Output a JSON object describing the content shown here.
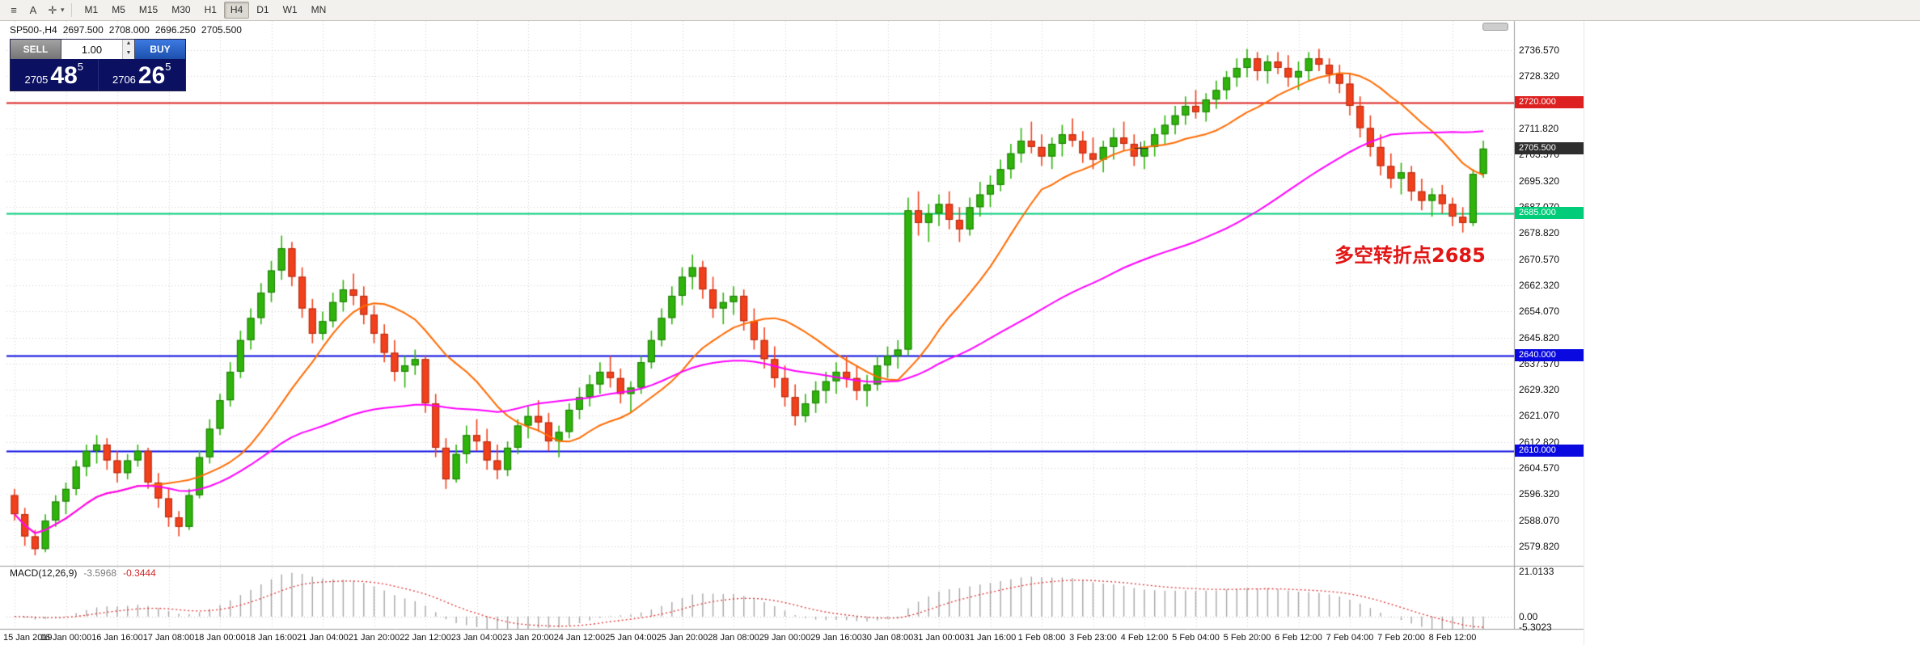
{
  "toolbar": {
    "icons": [
      {
        "id": "chart-window-icon",
        "glyph": "≡"
      },
      {
        "id": "text-tool-icon",
        "glyph": "A"
      },
      {
        "id": "crosshair-icon",
        "glyph": "✛"
      }
    ],
    "timeframes": [
      "M1",
      "M5",
      "M15",
      "M30",
      "H1",
      "H4",
      "D1",
      "W1",
      "MN"
    ],
    "active_timeframe": "H4"
  },
  "chart_header": {
    "symbol_tf": "SP500-,H4",
    "open": "2697.500",
    "high": "2708.000",
    "low": "2696.250",
    "close": "2705.500"
  },
  "one_click": {
    "sell_label": "SELL",
    "buy_label": "BUY",
    "volume": "1.00",
    "spin_up": "▲",
    "spin_down": "▼",
    "sell_price": {
      "head": "2705",
      "big": "48",
      "sup": "5"
    },
    "buy_price": {
      "head": "2706",
      "big": "26",
      "sup": "5"
    }
  },
  "price_tags": [
    {
      "label": "2720.000",
      "price": 2720.0,
      "color": "#dd2020"
    },
    {
      "label": "2705.500",
      "price": 2705.5,
      "color": "#2e2e2e"
    },
    {
      "label": "2685.000",
      "price": 2685.0,
      "color": "#00cc7a"
    },
    {
      "label": "2640.000",
      "price": 2640.0,
      "color": "#0a0ae0"
    },
    {
      "label": "2610.000",
      "price": 2610.0,
      "color": "#0a0ae0"
    }
  ],
  "chart_data": {
    "type": "candlestick",
    "symbol": "SP500-",
    "timeframe": "H4",
    "up_color": "#2fb40c",
    "up_border": "#1e7a06",
    "down_color": "#f2401c",
    "down_border": "#b02a10",
    "price_scale": {
      "top_price": 2745.8,
      "bottom_price": 2573.7
    },
    "price_axis_labels": [
      "2736.570",
      "2728.320",
      "2720.070",
      "2711.820",
      "2703.570",
      "2695.320",
      "2687.070",
      "2678.820",
      "2670.570",
      "2662.320",
      "2654.070",
      "2645.820",
      "2637.570",
      "2629.320",
      "2621.070",
      "2612.820",
      "2604.570",
      "2596.320",
      "2588.070",
      "2579.820"
    ],
    "hlines": [
      {
        "name": "resistance-2720",
        "price": 2720.0,
        "color": "#dd2020",
        "width": 2
      },
      {
        "name": "pivot-2685",
        "price": 2685.0,
        "color": "#00cc7a",
        "width": 2
      },
      {
        "name": "support-2640",
        "price": 2640.0,
        "color": "#0a0ae0",
        "width": 2
      },
      {
        "name": "support-2610",
        "price": 2610.0,
        "color": "#0a0ae0",
        "width": 2
      }
    ],
    "moving_averages": [
      {
        "name": "fast-ma",
        "color": "#ff6a00",
        "window": 14,
        "width": 2
      },
      {
        "name": "slow-ma",
        "color": "#ff00ff",
        "window": 48,
        "width": 2
      }
    ],
    "annotation": {
      "text": "多空转折点2685",
      "color": "#e21515"
    },
    "time_labels": [
      "15 Jan 2019",
      "16 Jan 00:00",
      "16 Jan 16:00",
      "17 Jan 08:00",
      "18 Jan 00:00",
      "18 Jan 16:00",
      "21 Jan 04:00",
      "21 Jan 20:00",
      "22 Jan 12:00",
      "23 Jan 04:00",
      "23 Jan 20:00",
      "24 Jan 12:00",
      "25 Jan 04:00",
      "25 Jan 20:00",
      "28 Jan 08:00",
      "29 Jan 00:00",
      "29 Jan 16:00",
      "30 Jan 08:00",
      "31 Jan 00:00",
      "31 Jan 16:00",
      "1 Feb 08:00",
      "3 Feb 23:00",
      "4 Feb 12:00",
      "5 Feb 04:00",
      "5 Feb 20:00",
      "6 Feb 12:00",
      "7 Feb 04:00",
      "7 Feb 20:00",
      "8 Feb 12:00"
    ],
    "label_every_n_bars": 5,
    "candles": [
      [
        2596,
        2598,
        2588,
        2590
      ],
      [
        2590,
        2592,
        2580,
        2583
      ],
      [
        2583,
        2585,
        2577,
        2579
      ],
      [
        2579,
        2590,
        2578,
        2588
      ],
      [
        2588,
        2596,
        2586,
        2594
      ],
      [
        2594,
        2600,
        2590,
        2598
      ],
      [
        2598,
        2607,
        2596,
        2605
      ],
      [
        2605,
        2612,
        2602,
        2610
      ],
      [
        2610,
        2615,
        2606,
        2612
      ],
      [
        2612,
        2614,
        2604,
        2607
      ],
      [
        2607,
        2610,
        2600,
        2603
      ],
      [
        2603,
        2609,
        2601,
        2607
      ],
      [
        2607,
        2612,
        2605,
        2610
      ],
      [
        2610,
        2611,
        2598,
        2600
      ],
      [
        2600,
        2603,
        2592,
        2595
      ],
      [
        2595,
        2598,
        2586,
        2589
      ],
      [
        2589,
        2591,
        2583,
        2586
      ],
      [
        2586,
        2598,
        2585,
        2596
      ],
      [
        2596,
        2610,
        2595,
        2608
      ],
      [
        2608,
        2620,
        2606,
        2617
      ],
      [
        2617,
        2628,
        2615,
        2626
      ],
      [
        2626,
        2638,
        2624,
        2635
      ],
      [
        2635,
        2648,
        2633,
        2645
      ],
      [
        2645,
        2655,
        2642,
        2652
      ],
      [
        2652,
        2663,
        2650,
        2660
      ],
      [
        2660,
        2670,
        2657,
        2667
      ],
      [
        2667,
        2678,
        2664,
        2674
      ],
      [
        2674,
        2676,
        2662,
        2665
      ],
      [
        2665,
        2668,
        2652,
        2655
      ],
      [
        2655,
        2658,
        2644,
        2647
      ],
      [
        2647,
        2654,
        2645,
        2651
      ],
      [
        2651,
        2660,
        2649,
        2657
      ],
      [
        2657,
        2664,
        2654,
        2661
      ],
      [
        2661,
        2666,
        2656,
        2659
      ],
      [
        2659,
        2662,
        2650,
        2653
      ],
      [
        2653,
        2656,
        2644,
        2647
      ],
      [
        2647,
        2650,
        2638,
        2641
      ],
      [
        2641,
        2645,
        2632,
        2635
      ],
      [
        2635,
        2640,
        2630,
        2637
      ],
      [
        2637,
        2642,
        2634,
        2639
      ],
      [
        2639,
        2640,
        2622,
        2625
      ],
      [
        2625,
        2628,
        2608,
        2611
      ],
      [
        2611,
        2614,
        2598,
        2601
      ],
      [
        2601,
        2612,
        2600,
        2609
      ],
      [
        2609,
        2618,
        2606,
        2615
      ],
      [
        2615,
        2620,
        2610,
        2613
      ],
      [
        2613,
        2617,
        2604,
        2607
      ],
      [
        2607,
        2612,
        2601,
        2604
      ],
      [
        2604,
        2613,
        2602,
        2611
      ],
      [
        2611,
        2620,
        2609,
        2618
      ],
      [
        2618,
        2624,
        2614,
        2621
      ],
      [
        2621,
        2626,
        2616,
        2619
      ],
      [
        2619,
        2622,
        2610,
        2613
      ],
      [
        2613,
        2618,
        2608,
        2616
      ],
      [
        2616,
        2625,
        2614,
        2623
      ],
      [
        2623,
        2630,
        2620,
        2627
      ],
      [
        2627,
        2634,
        2624,
        2631
      ],
      [
        2631,
        2638,
        2628,
        2635
      ],
      [
        2635,
        2640,
        2630,
        2633
      ],
      [
        2633,
        2636,
        2625,
        2628
      ],
      [
        2628,
        2632,
        2622,
        2630
      ],
      [
        2630,
        2640,
        2628,
        2638
      ],
      [
        2638,
        2648,
        2636,
        2645
      ],
      [
        2645,
        2655,
        2643,
        2652
      ],
      [
        2652,
        2662,
        2650,
        2659
      ],
      [
        2659,
        2668,
        2656,
        2665
      ],
      [
        2665,
        2672,
        2661,
        2668
      ],
      [
        2668,
        2670,
        2658,
        2661
      ],
      [
        2661,
        2665,
        2652,
        2655
      ],
      [
        2655,
        2660,
        2650,
        2657
      ],
      [
        2657,
        2662,
        2653,
        2659
      ],
      [
        2659,
        2661,
        2648,
        2651
      ],
      [
        2651,
        2655,
        2642,
        2645
      ],
      [
        2645,
        2649,
        2636,
        2639
      ],
      [
        2639,
        2643,
        2630,
        2633
      ],
      [
        2633,
        2637,
        2624,
        2627
      ],
      [
        2627,
        2631,
        2618,
        2621
      ],
      [
        2621,
        2628,
        2619,
        2625
      ],
      [
        2625,
        2632,
        2622,
        2629
      ],
      [
        2629,
        2635,
        2625,
        2632
      ],
      [
        2632,
        2638,
        2628,
        2635
      ],
      [
        2635,
        2640,
        2630,
        2633
      ],
      [
        2633,
        2637,
        2626,
        2629
      ],
      [
        2629,
        2634,
        2624,
        2631
      ],
      [
        2631,
        2640,
        2629,
        2637
      ],
      [
        2637,
        2643,
        2633,
        2640
      ],
      [
        2640,
        2645,
        2636,
        2642
      ],
      [
        2642,
        2690,
        2640,
        2686
      ],
      [
        2686,
        2692,
        2678,
        2682
      ],
      [
        2682,
        2688,
        2676,
        2685
      ],
      [
        2685,
        2691,
        2681,
        2688
      ],
      [
        2688,
        2692,
        2680,
        2683
      ],
      [
        2683,
        2687,
        2676,
        2680
      ],
      [
        2680,
        2690,
        2678,
        2687
      ],
      [
        2687,
        2695,
        2684,
        2691
      ],
      [
        2691,
        2697,
        2687,
        2694
      ],
      [
        2694,
        2702,
        2692,
        2699
      ],
      [
        2699,
        2707,
        2696,
        2704
      ],
      [
        2704,
        2712,
        2701,
        2708
      ],
      [
        2708,
        2714,
        2704,
        2706
      ],
      [
        2706,
        2710,
        2700,
        2703
      ],
      [
        2703,
        2709,
        2699,
        2707
      ],
      [
        2707,
        2713,
        2703,
        2710
      ],
      [
        2710,
        2715,
        2706,
        2708
      ],
      [
        2708,
        2711,
        2701,
        2704
      ],
      [
        2704,
        2709,
        2699,
        2702
      ],
      [
        2702,
        2708,
        2698,
        2706
      ],
      [
        2706,
        2712,
        2702,
        2709
      ],
      [
        2709,
        2714,
        2705,
        2707
      ],
      [
        2707,
        2710,
        2700,
        2703
      ],
      [
        2703,
        2708,
        2699,
        2706
      ],
      [
        2706,
        2712,
        2703,
        2710
      ],
      [
        2710,
        2716,
        2707,
        2713
      ],
      [
        2713,
        2719,
        2710,
        2716
      ],
      [
        2716,
        2722,
        2713,
        2719
      ],
      [
        2719,
        2724,
        2715,
        2717
      ],
      [
        2717,
        2723,
        2714,
        2721
      ],
      [
        2721,
        2727,
        2718,
        2724
      ],
      [
        2724,
        2730,
        2721,
        2728
      ],
      [
        2728,
        2734,
        2725,
        2731
      ],
      [
        2731,
        2737,
        2728,
        2734
      ],
      [
        2734,
        2736,
        2727,
        2730
      ],
      [
        2730,
        2735,
        2726,
        2733
      ],
      [
        2733,
        2736,
        2729,
        2731
      ],
      [
        2731,
        2735,
        2725,
        2728
      ],
      [
        2728,
        2733,
        2724,
        2730
      ],
      [
        2730,
        2736,
        2727,
        2734
      ],
      [
        2734,
        2737,
        2730,
        2732
      ],
      [
        2732,
        2734,
        2726,
        2729
      ],
      [
        2729,
        2732,
        2723,
        2726
      ],
      [
        2726,
        2729,
        2716,
        2719
      ],
      [
        2719,
        2722,
        2709,
        2712
      ],
      [
        2712,
        2716,
        2703,
        2706
      ],
      [
        2706,
        2710,
        2697,
        2700
      ],
      [
        2700,
        2704,
        2693,
        2696
      ],
      [
        2696,
        2701,
        2691,
        2698
      ],
      [
        2698,
        2700,
        2689,
        2692
      ],
      [
        2692,
        2696,
        2686,
        2689
      ],
      [
        2689,
        2693,
        2684,
        2691
      ],
      [
        2691,
        2694,
        2685,
        2688
      ],
      [
        2688,
        2690,
        2681,
        2684
      ],
      [
        2684,
        2687,
        2679,
        2682
      ],
      [
        2682,
        2699,
        2681,
        2697.5
      ],
      [
        2697.5,
        2708,
        2696.25,
        2705.5
      ]
    ],
    "macd": {
      "label": "MACD(12,26,9)",
      "value_main": "-3.5968",
      "value_signal": "-0.3444",
      "fast": 12,
      "slow": 26,
      "signal": 9,
      "axis_max": "21.0133",
      "axis_zero": "0.00",
      "axis_min": "-5.3023",
      "hist_color": "#a6a6a6",
      "signal_color": "#e03030"
    }
  }
}
